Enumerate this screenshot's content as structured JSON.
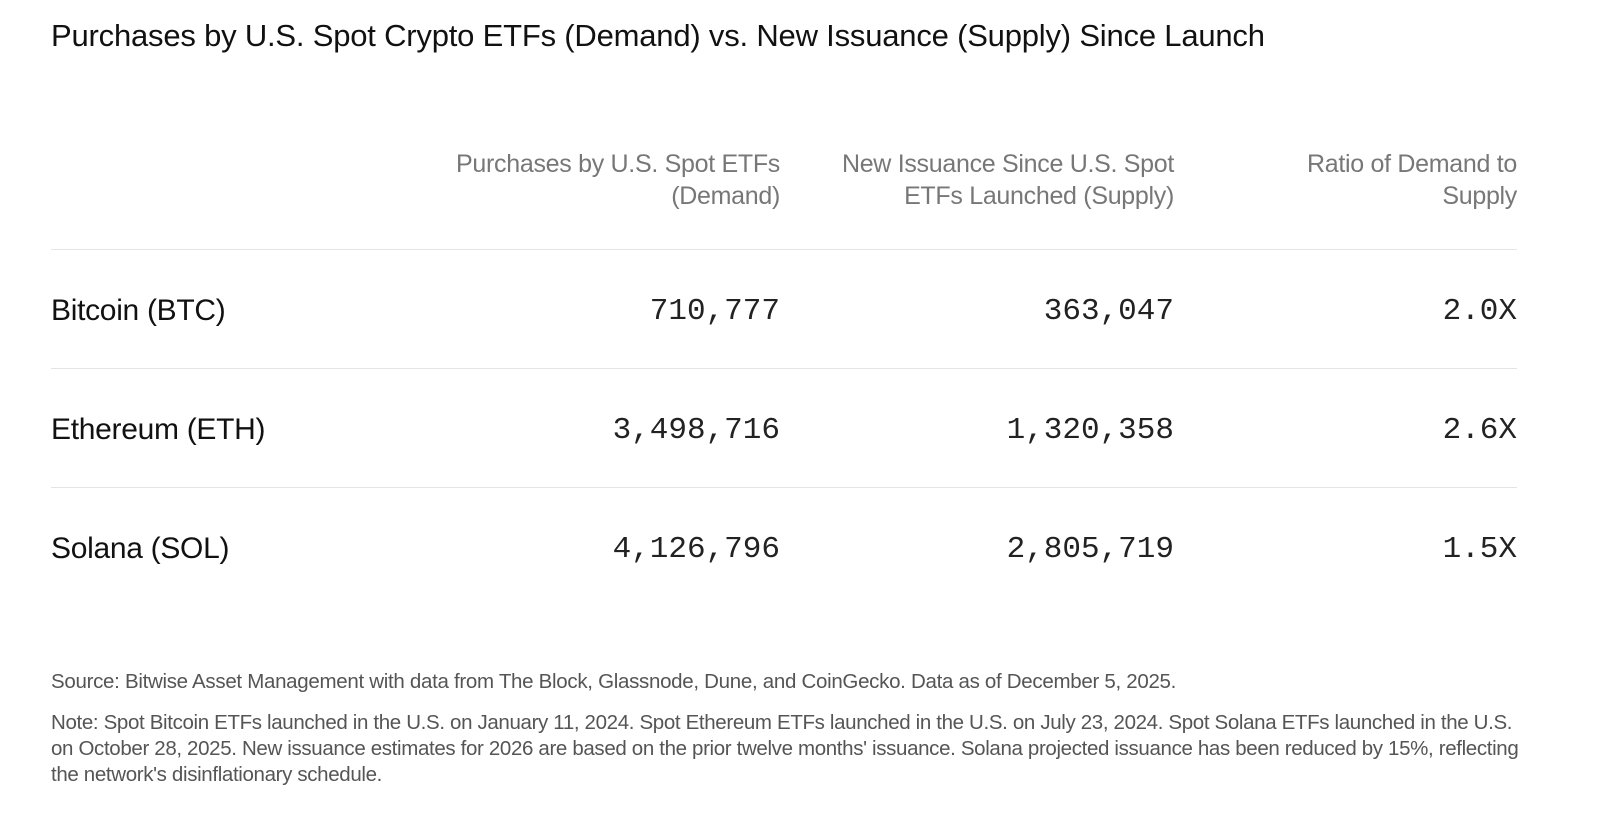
{
  "chart_data": {
    "type": "table",
    "title": "Purchases by U.S. Spot Crypto ETFs (Demand) vs. New Issuance (Supply) Since Launch",
    "columns": [
      "",
      "Purchases by U.S. Spot ETFs (Demand)",
      "New Issuance Since U.S. Spot ETFs Launched (Supply)",
      "Ratio of Demand to Supply"
    ],
    "rows": [
      {
        "asset": "Bitcoin (BTC)",
        "demand": "710,777",
        "supply": "363,047",
        "ratio": "2.0X"
      },
      {
        "asset": "Ethereum (ETH)",
        "demand": "3,498,716",
        "supply": "1,320,358",
        "ratio": "2.6X"
      },
      {
        "asset": "Solana (SOL)",
        "demand": "4,126,796",
        "supply": "2,805,719",
        "ratio": "1.5X"
      }
    ]
  },
  "footer": {
    "source": "Source: Bitwise Asset Management with data from The Block, Glassnode, Dune, and CoinGecko. Data as of December 5, 2025.",
    "note": "Note: Spot Bitcoin ETFs launched in the U.S. on January 11, 2024. Spot Ethereum ETFs launched in the U.S. on July 23, 2024. Spot Solana ETFs launched in the U.S. on October 28, 2025. New issuance estimates for 2026 are based on the prior twelve months' issuance. Solana projected issuance has been reduced by 15%, reflecting the network's disinflationary schedule."
  },
  "colors": {
    "header_text": "#777777",
    "body_text": "#111111",
    "divider": "#e4e4e4",
    "footnote_text": "#555555"
  }
}
